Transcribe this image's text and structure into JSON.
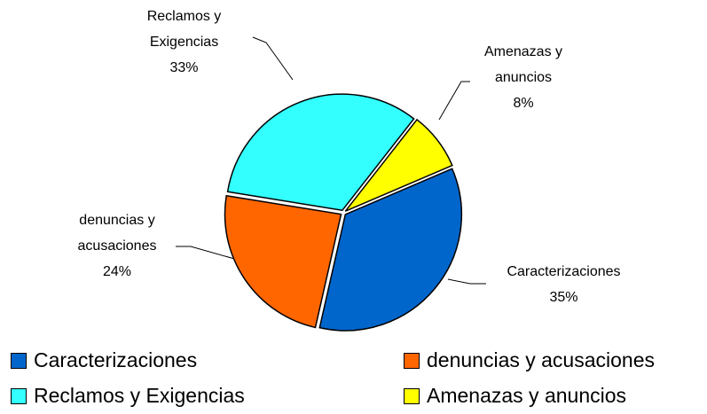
{
  "chart_data": {
    "type": "pie",
    "categories": [
      "Caracterizaciones",
      "denuncias y acusaciones",
      "Reclamos y Exigencias",
      "Amenazas y anuncios"
    ],
    "values": [
      35,
      24,
      33,
      8
    ],
    "value_labels": [
      "35%",
      "24%",
      "33%",
      "8%"
    ],
    "colors": [
      "#0066cc",
      "#ff6600",
      "#33ffff",
      "#ffff00"
    ],
    "legend": "bottom"
  }
}
